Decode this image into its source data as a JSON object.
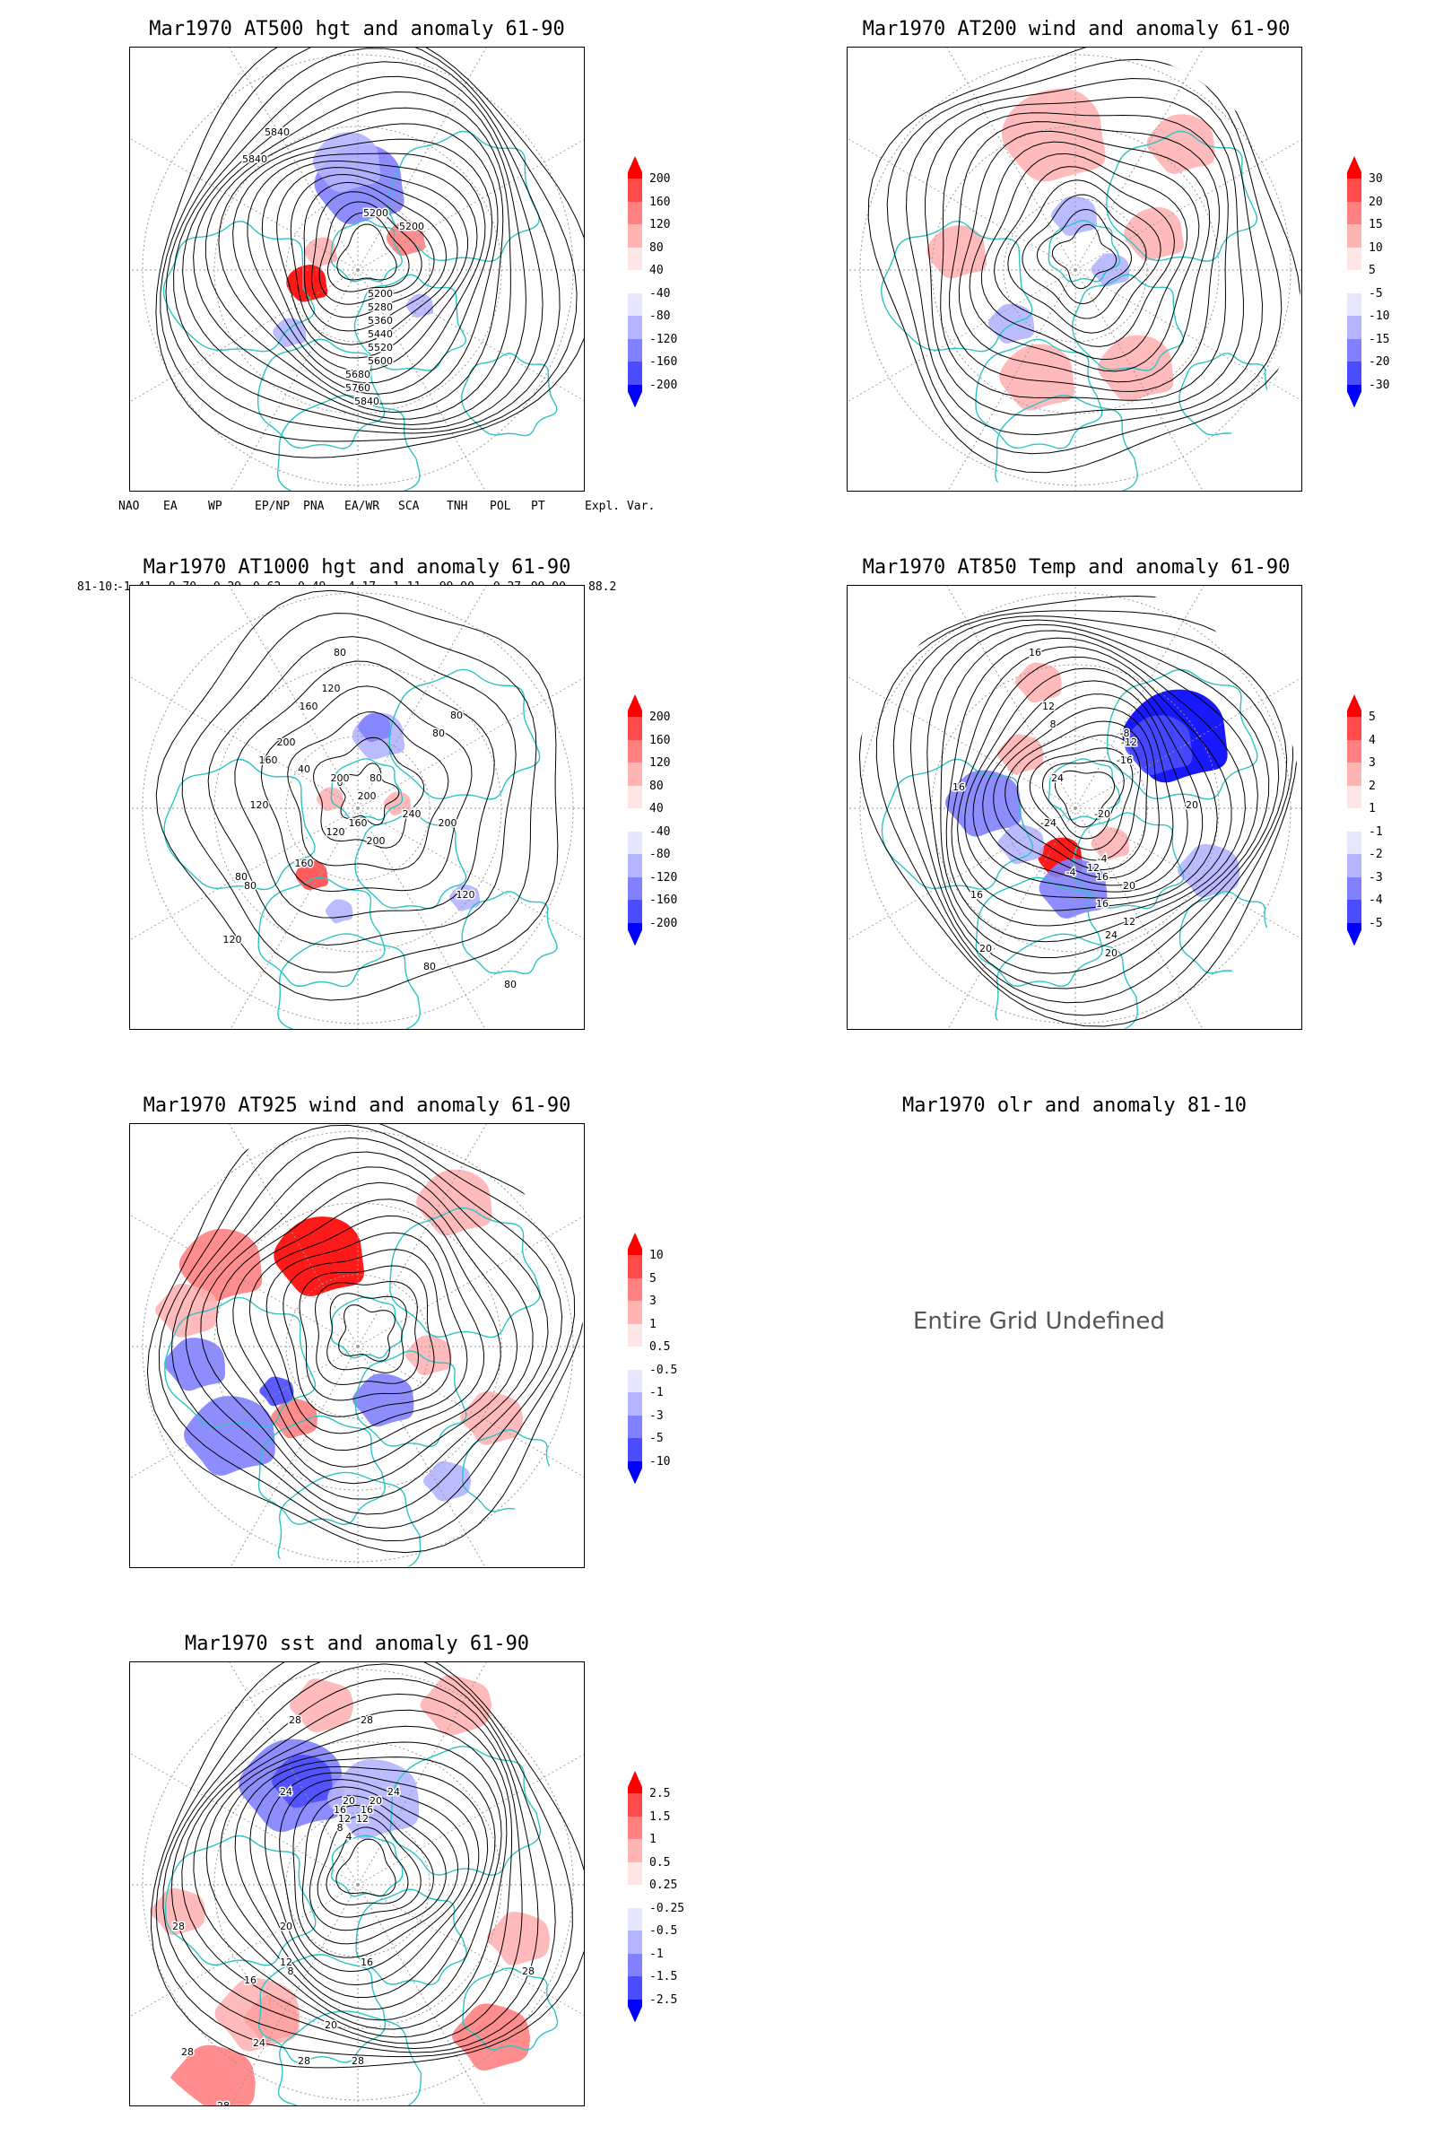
{
  "panels": [
    {
      "id": "p1",
      "title": "Mar1970 AT500 hgt and anomaly 61-90",
      "colorbar": [
        "200",
        "160",
        "120",
        "80",
        "40",
        "-40",
        "-80",
        "-120",
        "-160",
        "-200"
      ],
      "contour_labels": [
        "5840",
        "5840",
        "5200",
        "5200",
        "5200",
        "5280",
        "5360",
        "5440",
        "5520",
        "5600",
        "5680",
        "5760",
        "5840"
      ]
    },
    {
      "id": "p2",
      "title": "Mar1970 AT200 wind and anomaly 61-90",
      "colorbar": [
        "30",
        "20",
        "15",
        "10",
        "5",
        "-5",
        "-10",
        "-15",
        "-20",
        "-30"
      ],
      "contour_labels": []
    },
    {
      "id": "p3",
      "title": "Mar1970 AT1000 hgt and anomaly 61-90",
      "colorbar": [
        "200",
        "160",
        "120",
        "80",
        "40",
        "-40",
        "-80",
        "-120",
        "-160",
        "-200"
      ],
      "contour_labels": [
        "80",
        "120",
        "160",
        "80",
        "200",
        "40",
        "0",
        "120",
        "80",
        "160",
        "200",
        "200",
        "240",
        "160",
        "200",
        "120",
        "80",
        "80",
        "160",
        "200",
        "120",
        "80",
        "120",
        "80",
        "80"
      ]
    },
    {
      "id": "p4",
      "title": "Mar1970 AT850 Temp and anomaly 61-90",
      "colorbar": [
        "5",
        "4",
        "3",
        "2",
        "1",
        "-1",
        "-2",
        "-3",
        "-4",
        "-5"
      ],
      "contour_labels": [
        "16",
        "12",
        "8",
        "-8",
        "-12",
        "-16",
        "16",
        "-24",
        "-20",
        "20",
        "-4",
        "12",
        "16",
        "24",
        "20",
        "16",
        "16",
        "12",
        "20",
        "24",
        "20",
        "-4"
      ]
    },
    {
      "id": "p5",
      "title": "Mar1970 AT925 wind and anomaly 61-90",
      "colorbar": [
        "10",
        "5",
        "3",
        "1",
        "0.5",
        "-0.5",
        "-1",
        "-3",
        "-5",
        "-10"
      ],
      "contour_labels": []
    },
    {
      "id": "p6",
      "title": "Mar1970 olr and anomaly 81-10",
      "message": "Entire Grid Undefined"
    },
    {
      "id": "p7",
      "title": "Mar1970 sst and anomaly 61-90",
      "colorbar": [
        "2.5",
        "1.5",
        "1",
        "0.5",
        "0.25",
        "-0.25",
        "-0.5",
        "-1",
        "-1.5",
        "-2.5"
      ],
      "contour_labels": [
        "28",
        "28",
        "24",
        "24",
        "20",
        "20",
        "16",
        "16",
        "12",
        "12",
        "8",
        "4",
        "28",
        "28",
        "28",
        "28",
        "20",
        "12",
        "8",
        "16",
        "16",
        "20",
        "24",
        "28",
        "28"
      ]
    }
  ],
  "teleconnections": {
    "headers": [
      "NAO",
      "EA",
      "WP",
      "EP/NP",
      "PNA",
      "EA/WR",
      "SCA",
      "TNH",
      "POL",
      "PT",
      "Expl. Var."
    ],
    "row_label": "81-10:",
    "values": [
      "-1.41",
      "-0.70",
      "-0.29",
      "0.62",
      "0.49",
      "-4.17",
      "1.11",
      "-99.90",
      "-0.27",
      "-99.90",
      "88.2"
    ]
  },
  "colors": {
    "coastline": "#2ec4c4",
    "contour": "#000000",
    "graticule": "#9a9a9a",
    "colorbar": [
      "#ff0000",
      "#ff4b4b",
      "#ff8181",
      "#ffb4b4",
      "#ffe6e6",
      "#ffffff",
      "#e6e6ff",
      "#b4b4ff",
      "#8181ff",
      "#4b4bff",
      "#0000ff"
    ]
  }
}
